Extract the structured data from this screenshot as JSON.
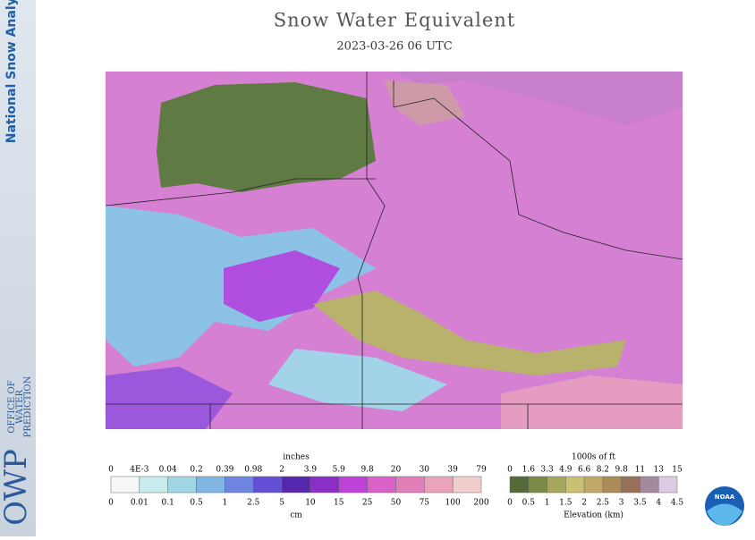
{
  "header": {
    "title": "Snow Water Equivalent",
    "subtitle": "2023-03-26 06 UTC"
  },
  "sidebar": {
    "product": "National Snow Analysis",
    "office": [
      "OFFICE OF",
      "WATER",
      "PREDICTION"
    ],
    "logo": "OWP"
  },
  "swe_legend": {
    "unit_top": "inches",
    "unit_bottom": "cm",
    "top_labels": [
      "0",
      "4E-3",
      "0.04",
      "0.2",
      "0.39",
      "0.98",
      "2",
      "3.9",
      "5.9",
      "9.8",
      "20",
      "30",
      "39",
      "79"
    ],
    "bottom_labels": [
      "0",
      "0.01",
      "0.1",
      "0.5",
      "1",
      "2.5",
      "5",
      "10",
      "15",
      "25",
      "50",
      "75",
      "100",
      "200"
    ],
    "colors": [
      "#f6f6f6",
      "#c8ecee",
      "#a2d6e4",
      "#82b6e2",
      "#6e86e0",
      "#6450d6",
      "#5626ac",
      "#8a2ec6",
      "#bf42d8",
      "#d962c8",
      "#e07fba",
      "#e9a3bc",
      "#f2cdcd"
    ]
  },
  "elevation_legend": {
    "unit_top": "1000s of ft",
    "unit_bottom": "Elevation (km)",
    "top_labels": [
      "0",
      "1.6",
      "3.3",
      "4.9",
      "6.6",
      "8.2",
      "9.8",
      "11",
      "13",
      "15"
    ],
    "bottom_labels": [
      "0",
      "0.5",
      "1",
      "1.5",
      "2",
      "2.5",
      "3",
      "3.5",
      "4",
      "4.5"
    ],
    "colors": [
      "#56693a",
      "#7a8a48",
      "#a6a65e",
      "#c9c172",
      "#c1a96a",
      "#ae895a",
      "#967058",
      "#a48a9c",
      "#dccbe2"
    ]
  },
  "agency_logo": "NOAA"
}
